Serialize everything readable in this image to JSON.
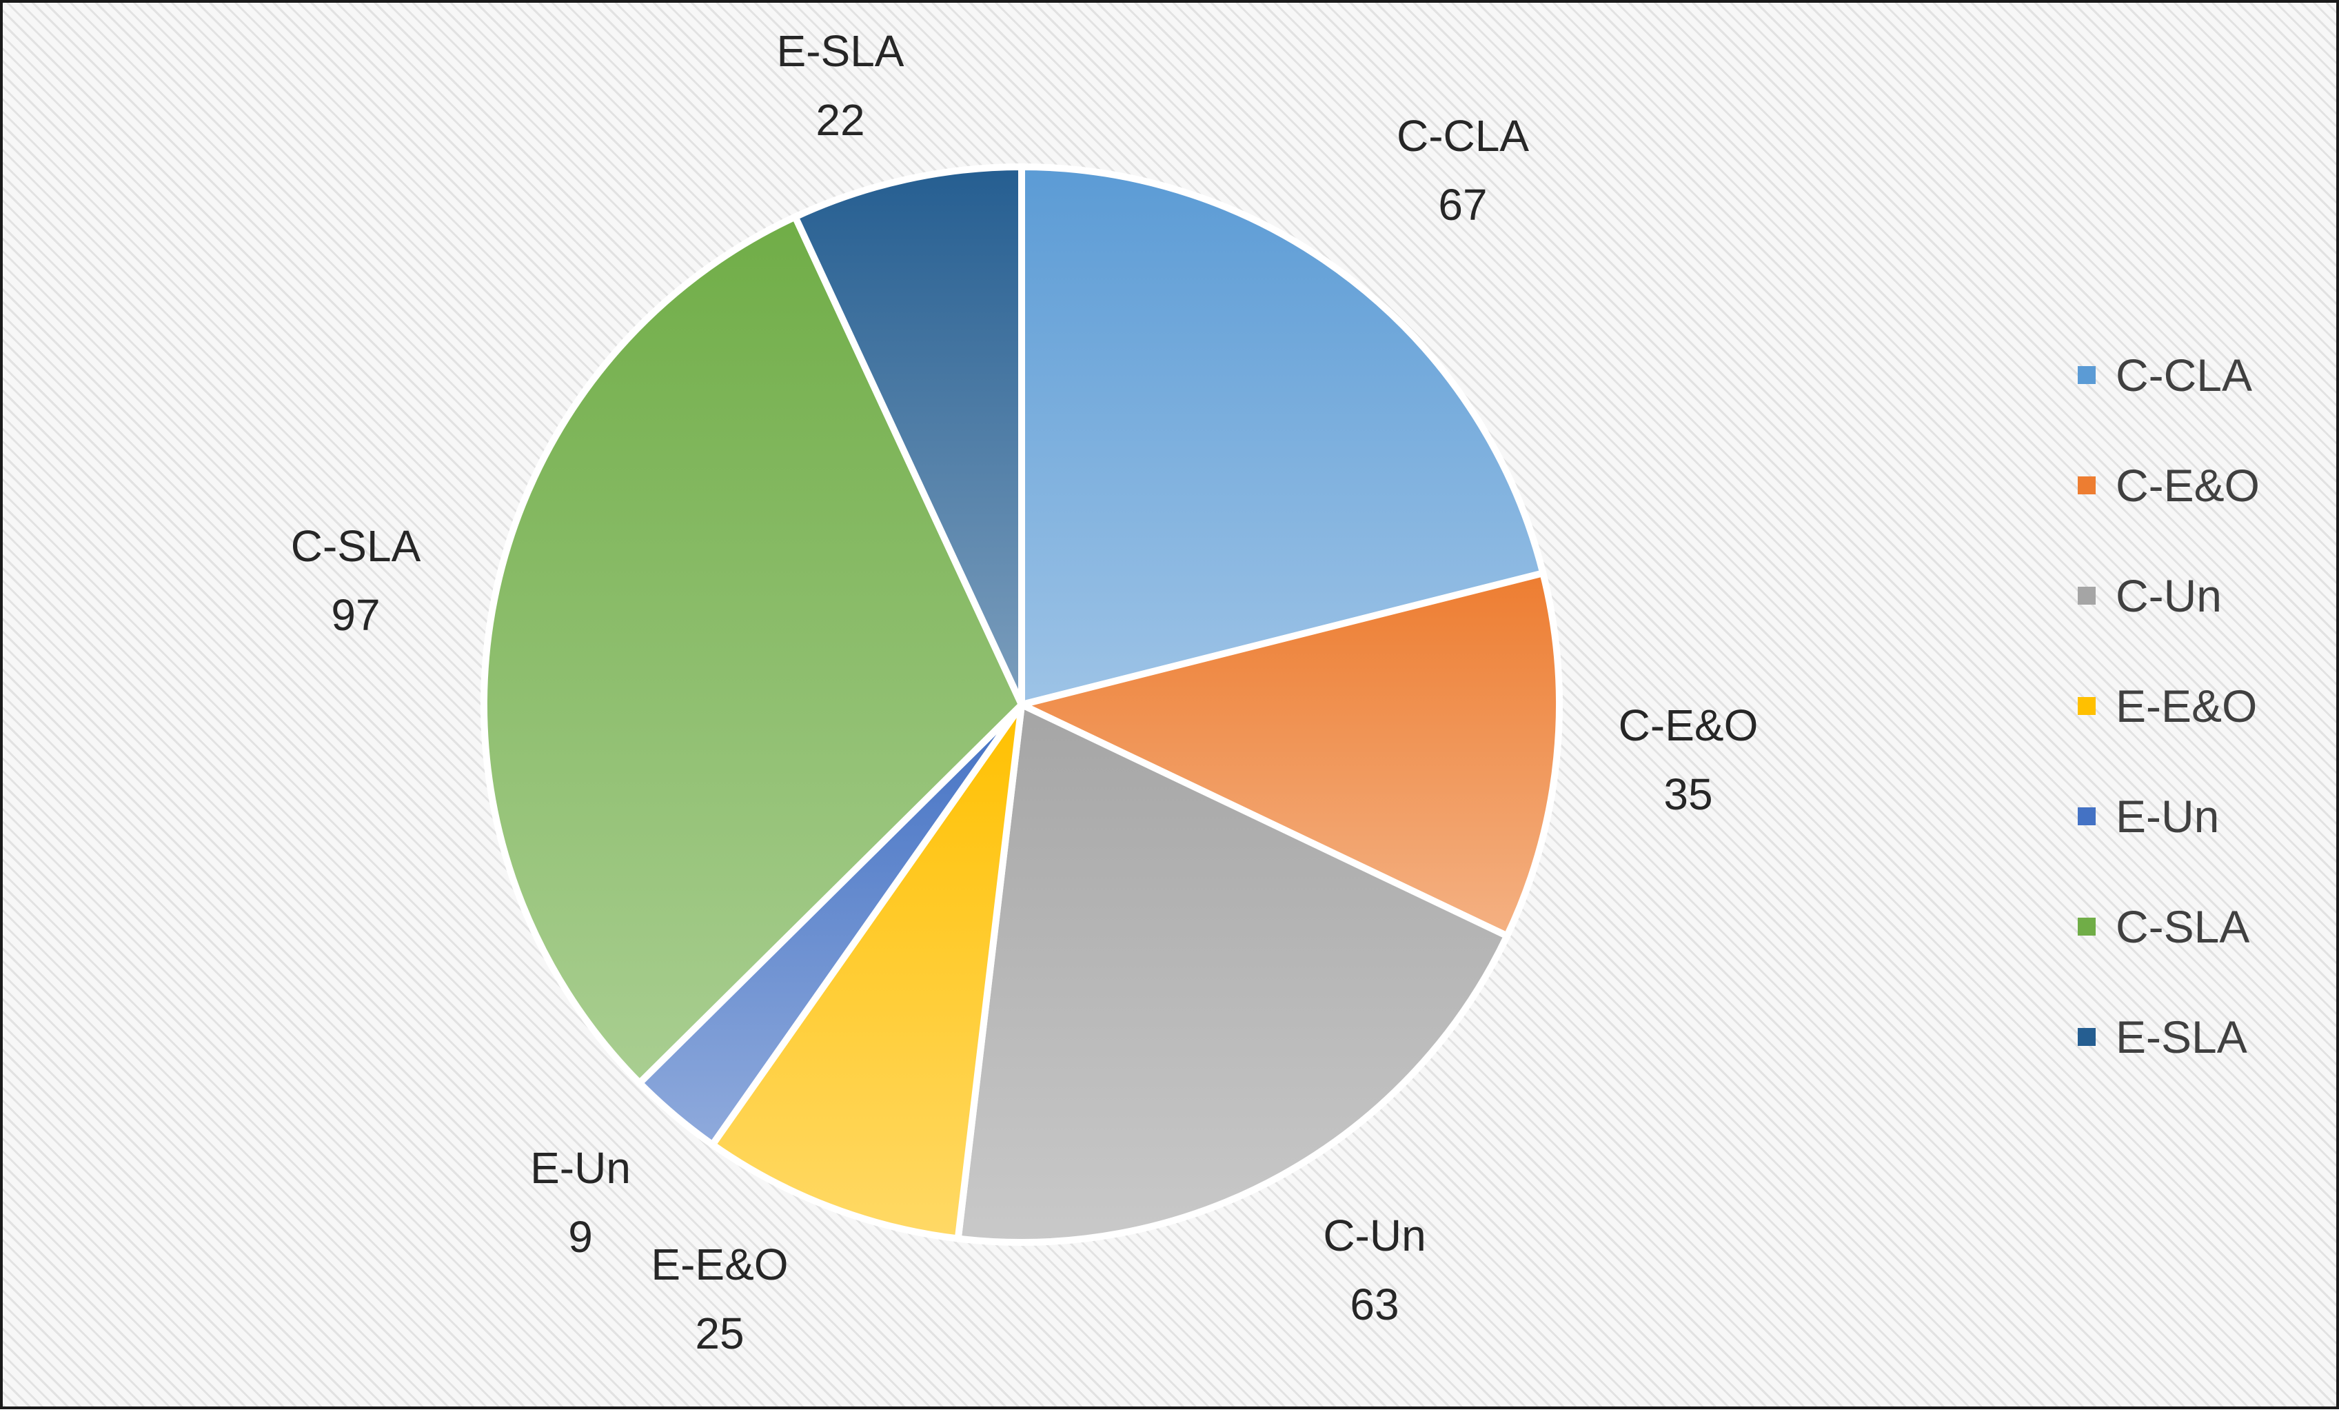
{
  "chart_data": {
    "type": "pie",
    "title": "",
    "legend_position": "right",
    "slices": [
      {
        "label": "C-CLA",
        "value": 67,
        "color": "#5b9bd5"
      },
      {
        "label": "C-E&O",
        "value": 35,
        "color": "#ed7d31"
      },
      {
        "label": "C-Un",
        "value": 63,
        "color": "#a5a5a5"
      },
      {
        "label": "E-E&O",
        "value": 25,
        "color": "#ffc000"
      },
      {
        "label": "E-Un",
        "value": 9,
        "color": "#4472c4"
      },
      {
        "label": "C-SLA",
        "value": 97,
        "color": "#70ad47"
      },
      {
        "label": "E-SLA",
        "value": 22,
        "color": "#255e91"
      }
    ]
  }
}
